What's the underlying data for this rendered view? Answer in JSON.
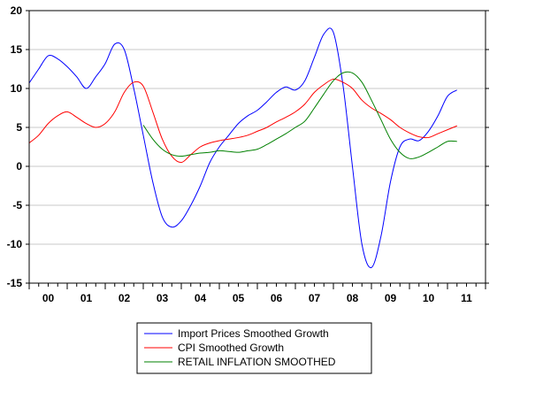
{
  "chart_data": {
    "type": "line",
    "title": "",
    "xlabel": "",
    "ylabel": "",
    "ylim": [
      -15,
      20
    ],
    "yticks": [
      20,
      15,
      10,
      5,
      0,
      -5,
      -10,
      -15
    ],
    "xlim": [
      2000,
      2012
    ],
    "xtick_labels": [
      "00",
      "01",
      "02",
      "03",
      "04",
      "05",
      "06",
      "07",
      "08",
      "09",
      "10",
      "11"
    ],
    "grid": "horizontal",
    "legend_position": "bottom-center",
    "series": [
      {
        "name": "Import Prices Smoothed Growth",
        "color": "#0000ff",
        "x": [
          2000.0,
          2000.25,
          2000.5,
          2000.75,
          2001.0,
          2001.25,
          2001.5,
          2001.75,
          2002.0,
          2002.25,
          2002.5,
          2002.75,
          2003.0,
          2003.25,
          2003.5,
          2003.75,
          2004.0,
          2004.25,
          2004.5,
          2004.75,
          2005.0,
          2005.25,
          2005.5,
          2005.75,
          2006.0,
          2006.25,
          2006.5,
          2006.75,
          2007.0,
          2007.25,
          2007.5,
          2007.75,
          2008.0,
          2008.25,
          2008.5,
          2008.75,
          2009.0,
          2009.25,
          2009.5,
          2009.75,
          2010.0,
          2010.25,
          2010.5,
          2010.75,
          2011.0,
          2011.25
        ],
        "y": [
          10.7,
          12.5,
          14.2,
          13.8,
          12.8,
          11.5,
          10.0,
          11.5,
          13.2,
          15.7,
          15.0,
          10.0,
          4.0,
          -2.0,
          -6.5,
          -7.8,
          -7.0,
          -5.0,
          -2.5,
          0.5,
          2.5,
          4.0,
          5.5,
          6.5,
          7.2,
          8.3,
          9.5,
          10.2,
          9.8,
          11.0,
          14.0,
          17.0,
          17.2,
          10.5,
          0.0,
          -10.0,
          -13.0,
          -9.0,
          -2.0,
          2.5,
          3.5,
          3.3,
          4.5,
          6.5,
          9.0,
          9.8
        ]
      },
      {
        "name": "CPI Smoothed Growth",
        "color": "#ff0000",
        "x": [
          2000.0,
          2000.25,
          2000.5,
          2000.75,
          2001.0,
          2001.25,
          2001.5,
          2001.75,
          2002.0,
          2002.25,
          2002.5,
          2002.75,
          2003.0,
          2003.25,
          2003.5,
          2003.75,
          2004.0,
          2004.25,
          2004.5,
          2004.75,
          2005.0,
          2005.25,
          2005.5,
          2005.75,
          2006.0,
          2006.25,
          2006.5,
          2006.75,
          2007.0,
          2007.25,
          2007.5,
          2007.75,
          2008.0,
          2008.25,
          2008.5,
          2008.75,
          2009.0,
          2009.25,
          2009.5,
          2009.75,
          2010.0,
          2010.25,
          2010.5,
          2010.75,
          2011.0,
          2011.25
        ],
        "y": [
          3.0,
          4.0,
          5.5,
          6.5,
          7.0,
          6.3,
          5.5,
          5.0,
          5.5,
          7.0,
          9.5,
          10.8,
          10.3,
          7.0,
          3.5,
          1.3,
          0.5,
          1.5,
          2.5,
          3.0,
          3.3,
          3.5,
          3.7,
          4.0,
          4.5,
          5.0,
          5.7,
          6.3,
          7.0,
          8.0,
          9.5,
          10.5,
          11.2,
          10.8,
          10.0,
          8.5,
          7.5,
          6.8,
          6.0,
          5.0,
          4.3,
          3.8,
          3.7,
          4.2,
          4.7,
          5.2
        ]
      },
      {
        "name": "RETAIL INFLATION SMOOTHED",
        "color": "#008000",
        "x": [
          2003.0,
          2003.25,
          2003.5,
          2003.75,
          2004.0,
          2004.25,
          2004.5,
          2004.75,
          2005.0,
          2005.25,
          2005.5,
          2005.75,
          2006.0,
          2006.25,
          2006.5,
          2006.75,
          2007.0,
          2007.25,
          2007.5,
          2007.75,
          2008.0,
          2008.25,
          2008.5,
          2008.75,
          2009.0,
          2009.25,
          2009.5,
          2009.75,
          2010.0,
          2010.25,
          2010.5,
          2010.75,
          2011.0,
          2011.25
        ],
        "y": [
          5.3,
          3.5,
          2.2,
          1.5,
          1.3,
          1.5,
          1.7,
          1.8,
          2.0,
          1.9,
          1.8,
          2.0,
          2.2,
          2.8,
          3.5,
          4.2,
          5.0,
          5.8,
          7.5,
          9.3,
          11.0,
          12.0,
          12.0,
          10.8,
          8.5,
          6.0,
          3.5,
          1.8,
          1.0,
          1.2,
          1.8,
          2.5,
          3.2,
          3.2
        ]
      }
    ]
  }
}
